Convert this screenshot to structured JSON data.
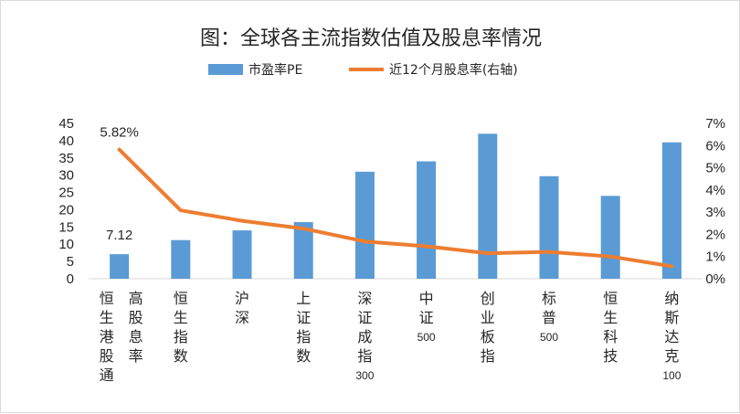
{
  "chart_data": {
    "type": "bar",
    "title": "图：全球各主流指数估值及股息率情况",
    "categories": [
      [
        "恒生港股通",
        "高股息率"
      ],
      "恒生指数",
      "沪深",
      "上证指数",
      [
        "深证成指",
        "300"
      ],
      [
        "中证",
        "500"
      ],
      "创业板指",
      [
        "标普",
        "500"
      ],
      "恒生科技",
      [
        "纳斯达克",
        "100"
      ]
    ],
    "series": [
      {
        "name": "市盈率PE",
        "type": "bar",
        "axis": "left",
        "color": "#5b9bd5",
        "values": [
          7.12,
          11.2,
          14.0,
          16.4,
          31.0,
          34.0,
          42.0,
          29.7,
          24.0,
          39.5
        ]
      },
      {
        "name": "近12个月股息率(右轴)",
        "type": "line",
        "axis": "right",
        "color": "#ed7d31",
        "values": [
          5.82,
          3.08,
          2.61,
          2.26,
          1.68,
          1.46,
          1.15,
          1.21,
          1.0,
          0.56
        ]
      }
    ],
    "y_left": {
      "ylim": [
        0,
        45
      ],
      "ticks": [
        0,
        5,
        10,
        15,
        20,
        25,
        30,
        35,
        40,
        45
      ]
    },
    "y_right": {
      "ylim": [
        0,
        7
      ],
      "ticks": [
        "0%",
        "1%",
        "2%",
        "3%",
        "4%",
        "5%",
        "6%",
        "7%"
      ]
    },
    "data_labels": {
      "bar_first": "7.12",
      "line_first": "5.82%"
    },
    "legend_position": "top",
    "grid": false
  }
}
